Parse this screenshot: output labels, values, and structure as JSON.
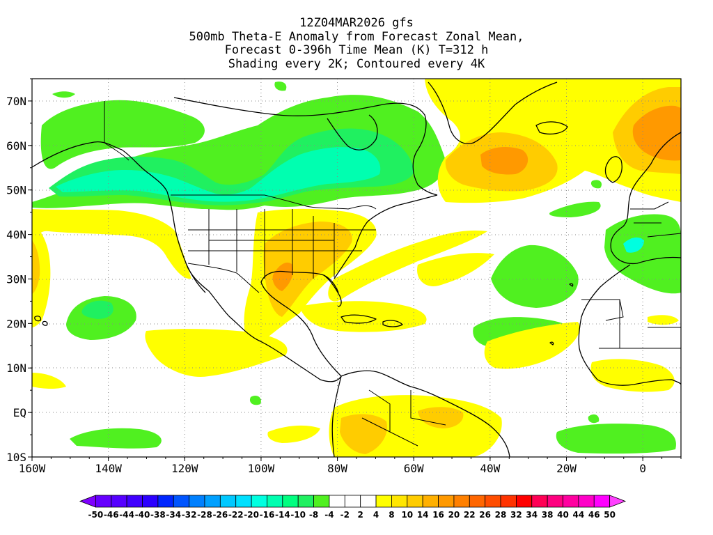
{
  "title": {
    "line1": "12Z04MAR2026 gfs",
    "line2": "500mb Theta-E Anomaly from Forecast Zonal Mean,",
    "line3": "Forecast 0-396h Time Mean (K) T=312 h",
    "line4": "Shading every 2K; Contoured every 4K"
  },
  "map": {
    "lon_range": [
      -160,
      10
    ],
    "lat_range": [
      -10,
      75
    ],
    "x_ticks": [
      "160W",
      "140W",
      "120W",
      "100W",
      "80W",
      "60W",
      "40W",
      "20W",
      "0"
    ],
    "y_ticks": [
      "70N",
      "60N",
      "50N",
      "40N",
      "30N",
      "20N",
      "10N",
      "EQ",
      "10S"
    ],
    "grid": "dotted",
    "field": "500mb Theta-E anomaly (K)"
  },
  "colorbar": {
    "labels": [
      "-50",
      "-46",
      "-44",
      "-40",
      "-38",
      "-34",
      "-32",
      "-28",
      "-26",
      "-22",
      "-20",
      "-16",
      "-14",
      "-10",
      "-8",
      "-4",
      "-2",
      "2",
      "4",
      "8",
      "10",
      "14",
      "16",
      "20",
      "22",
      "26",
      "28",
      "32",
      "34",
      "38",
      "40",
      "44",
      "46",
      "50"
    ],
    "colors": [
      "#7f00ff",
      "#6600ff",
      "#5500ff",
      "#4000ff",
      "#2b00ff",
      "#0026ff",
      "#0055ff",
      "#0080ff",
      "#00a0ff",
      "#00c8ff",
      "#00e0ff",
      "#00ffe0",
      "#00ffb0",
      "#00ff80",
      "#20f060",
      "#50f020",
      "#ffffff",
      "#ffffff",
      "#ffffff",
      "#ffff00",
      "#ffe600",
      "#ffcc00",
      "#ffb000",
      "#ff9900",
      "#ff8000",
      "#ff6600",
      "#ff4d00",
      "#ff3300",
      "#ff0000",
      "#ff0055",
      "#ff0080",
      "#ff00a0",
      "#ff00c8",
      "#ff00ff",
      "#ff40ff"
    ]
  }
}
